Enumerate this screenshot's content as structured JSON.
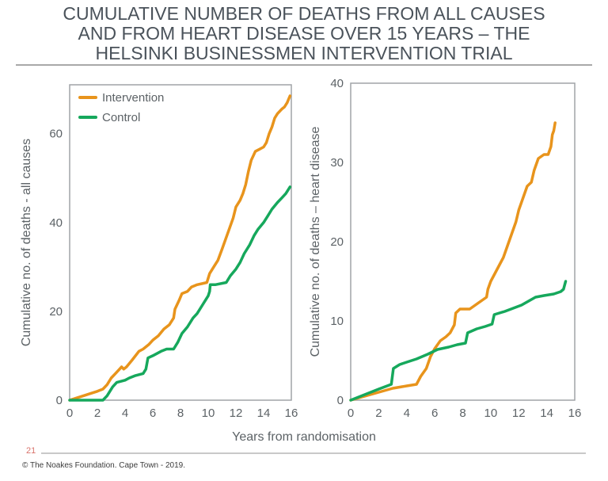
{
  "header": {
    "title_lines": [
      "CUMULATIVE NUMBER OF DEATHS FROM ALL CAUSES",
      "AND FROM HEART DISEASE OVER 15 YEARS – THE",
      "HELSINKI BUSINESSMEN INTERVENTION TRIAL"
    ]
  },
  "colors": {
    "orange": "#E8941C",
    "green": "#16A85C",
    "title_text": "#4A525A",
    "axis_text": "#5C6266",
    "frame": "#A0A4A7",
    "title_rule": "#A9A9A9",
    "footer_rule": "#C9C9C9",
    "page_number": "#D9736B",
    "copyright_text": "#3C3C3C"
  },
  "chart_data": [
    {
      "type": "line",
      "title": "",
      "ylabel": "Cumulative no. of deaths - all causes",
      "xlabel": "Years from randomisation",
      "xlim": [
        0,
        16
      ],
      "ylim": [
        0,
        71
      ],
      "xticks": [
        0,
        2,
        4,
        6,
        8,
        10,
        12,
        14,
        16
      ],
      "yticks": [
        0,
        20,
        40,
        60
      ],
      "grid": false,
      "legend": true,
      "legend_position": "top-left",
      "series": [
        {
          "name": "Intervention",
          "color": "#E8941C",
          "points": [
            [
              0,
              0
            ],
            [
              0.5,
              0.5
            ],
            [
              1,
              1
            ],
            [
              1.5,
              1.5
            ],
            [
              2,
              2
            ],
            [
              2.4,
              2.5
            ],
            [
              2.7,
              3.5
            ],
            [
              3,
              5
            ],
            [
              3.3,
              6
            ],
            [
              3.6,
              7
            ],
            [
              3.75,
              7.5
            ],
            [
              3.9,
              7
            ],
            [
              4.1,
              7.5
            ],
            [
              4.5,
              9
            ],
            [
              5,
              11
            ],
            [
              5.3,
              11.5
            ],
            [
              5.7,
              12.5
            ],
            [
              6,
              13.5
            ],
            [
              6.4,
              14.5
            ],
            [
              6.8,
              16
            ],
            [
              7.2,
              17
            ],
            [
              7.5,
              18.5
            ],
            [
              7.6,
              20.5
            ],
            [
              7.9,
              22.5
            ],
            [
              8.1,
              24
            ],
            [
              8.5,
              24.5
            ],
            [
              8.8,
              25.5
            ],
            [
              9.2,
              26
            ],
            [
              9.9,
              26.5
            ],
            [
              10.1,
              28.5
            ],
            [
              10.4,
              30
            ],
            [
              10.7,
              31.5
            ],
            [
              11,
              34
            ],
            [
              11.4,
              37.5
            ],
            [
              11.8,
              41
            ],
            [
              12,
              43.5
            ],
            [
              12.3,
              45
            ],
            [
              12.5,
              46.5
            ],
            [
              12.7,
              48.5
            ],
            [
              12.9,
              51.5
            ],
            [
              13.1,
              54
            ],
            [
              13.4,
              56
            ],
            [
              13.7,
              56.5
            ],
            [
              14,
              57
            ],
            [
              14.2,
              58
            ],
            [
              14.4,
              60
            ],
            [
              14.6,
              61.5
            ],
            [
              14.8,
              63.5
            ],
            [
              15,
              64.5
            ],
            [
              15.3,
              65.5
            ],
            [
              15.5,
              66
            ],
            [
              15.7,
              67
            ],
            [
              15.9,
              68.5
            ]
          ]
        },
        {
          "name": "Control",
          "color": "#16A85C",
          "points": [
            [
              0,
              0
            ],
            [
              2.4,
              0
            ],
            [
              2.7,
              1
            ],
            [
              3.1,
              3
            ],
            [
              3.4,
              4
            ],
            [
              4,
              4.5
            ],
            [
              4.3,
              5
            ],
            [
              4.7,
              5.5
            ],
            [
              5.3,
              6
            ],
            [
              5.5,
              7
            ],
            [
              5.65,
              9.5
            ],
            [
              6,
              10
            ],
            [
              6.6,
              11
            ],
            [
              7,
              11.5
            ],
            [
              7.5,
              11.5
            ],
            [
              7.8,
              13
            ],
            [
              8.1,
              15
            ],
            [
              8.5,
              16.5
            ],
            [
              8.9,
              18.5
            ],
            [
              9.2,
              19.5
            ],
            [
              9.6,
              21.5
            ],
            [
              10,
              23.5
            ],
            [
              10.1,
              24.5
            ],
            [
              10.15,
              26
            ],
            [
              10.5,
              26
            ],
            [
              11.3,
              26.5
            ],
            [
              11.6,
              28
            ],
            [
              12,
              29.5
            ],
            [
              12.3,
              31
            ],
            [
              12.6,
              33
            ],
            [
              13,
              35
            ],
            [
              13.3,
              37
            ],
            [
              13.6,
              38.5
            ],
            [
              14,
              40
            ],
            [
              14.3,
              41.5
            ],
            [
              14.6,
              43
            ],
            [
              15,
              44.5
            ],
            [
              15.3,
              45.5
            ],
            [
              15.6,
              46.5
            ],
            [
              15.9,
              48
            ]
          ]
        }
      ]
    },
    {
      "type": "line",
      "title": "",
      "ylabel": "Cumulative no. of deaths – heart disease",
      "xlabel": "",
      "xlim": [
        0,
        16
      ],
      "ylim": [
        0,
        40
      ],
      "xticks": [
        0,
        2,
        4,
        6,
        8,
        10,
        12,
        14,
        16
      ],
      "yticks": [
        0,
        10,
        20,
        30,
        40
      ],
      "grid": false,
      "legend": false,
      "legend_position": "",
      "series": [
        {
          "name": "Intervention",
          "color": "#E8941C",
          "points": [
            [
              0,
              0
            ],
            [
              1,
              0.5
            ],
            [
              2,
              1
            ],
            [
              3,
              1.5
            ],
            [
              4,
              1.8
            ],
            [
              4.7,
              2
            ],
            [
              5,
              3
            ],
            [
              5.4,
              4
            ],
            [
              5.7,
              5.5
            ],
            [
              6,
              6.5
            ],
            [
              6.4,
              7.5
            ],
            [
              6.8,
              8
            ],
            [
              7.1,
              8.5
            ],
            [
              7.4,
              9.5
            ],
            [
              7.5,
              11
            ],
            [
              7.8,
              11.5
            ],
            [
              8.5,
              11.5
            ],
            [
              8.9,
              12
            ],
            [
              9.3,
              12.5
            ],
            [
              9.7,
              13
            ],
            [
              9.8,
              14
            ],
            [
              10,
              15
            ],
            [
              10.3,
              16
            ],
            [
              10.6,
              17
            ],
            [
              10.9,
              18
            ],
            [
              11.2,
              19.5
            ],
            [
              11.5,
              21
            ],
            [
              11.8,
              22.5
            ],
            [
              12,
              24
            ],
            [
              12.3,
              25.5
            ],
            [
              12.6,
              27
            ],
            [
              12.9,
              27.5
            ],
            [
              13.1,
              29
            ],
            [
              13.4,
              30.5
            ],
            [
              13.8,
              31
            ],
            [
              14.1,
              31
            ],
            [
              14.3,
              32
            ],
            [
              14.4,
              33.5
            ],
            [
              14.5,
              34
            ],
            [
              14.6,
              35
            ]
          ]
        },
        {
          "name": "Control",
          "color": "#16A85C",
          "points": [
            [
              0,
              0
            ],
            [
              1,
              0.7
            ],
            [
              2,
              1.4
            ],
            [
              2.9,
              2
            ],
            [
              3.05,
              4
            ],
            [
              3.5,
              4.5
            ],
            [
              4,
              4.8
            ],
            [
              4.7,
              5.2
            ],
            [
              5.5,
              5.8
            ],
            [
              6.2,
              6.4
            ],
            [
              7,
              6.7
            ],
            [
              7.6,
              7
            ],
            [
              8.2,
              7.2
            ],
            [
              8.35,
              8.5
            ],
            [
              9,
              9
            ],
            [
              9.6,
              9.3
            ],
            [
              10.1,
              9.6
            ],
            [
              10.25,
              10.8
            ],
            [
              11,
              11.2
            ],
            [
              11.6,
              11.6
            ],
            [
              12.2,
              12
            ],
            [
              12.8,
              12.6
            ],
            [
              13.2,
              13
            ],
            [
              13.8,
              13.2
            ],
            [
              14.5,
              13.4
            ],
            [
              15,
              13.7
            ],
            [
              15.2,
              14
            ],
            [
              15.35,
              15
            ]
          ]
        }
      ]
    }
  ],
  "footer": {
    "page_number": "21",
    "copyright": "© The Noakes Foundation. Cape Town - 2019."
  }
}
